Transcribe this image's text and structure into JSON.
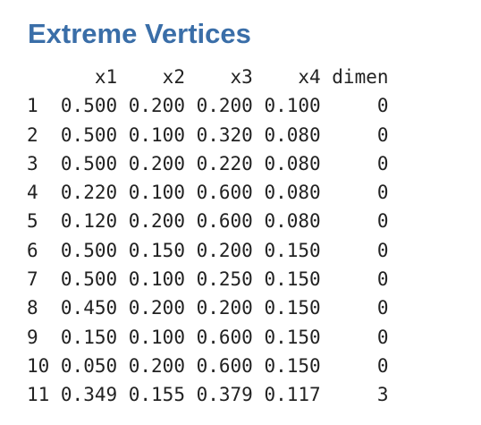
{
  "title": "Extreme Vertices",
  "table": {
    "headers": {
      "x1": "x1",
      "x2": "x2",
      "x3": "x3",
      "x4": "x4",
      "dimen": "dimen"
    },
    "rows": [
      {
        "idx": "1",
        "x1": "0.500",
        "x2": "0.200",
        "x3": "0.200",
        "x4": "0.100",
        "dimen": "0"
      },
      {
        "idx": "2",
        "x1": "0.500",
        "x2": "0.100",
        "x3": "0.320",
        "x4": "0.080",
        "dimen": "0"
      },
      {
        "idx": "3",
        "x1": "0.500",
        "x2": "0.200",
        "x3": "0.220",
        "x4": "0.080",
        "dimen": "0"
      },
      {
        "idx": "4",
        "x1": "0.220",
        "x2": "0.100",
        "x3": "0.600",
        "x4": "0.080",
        "dimen": "0"
      },
      {
        "idx": "5",
        "x1": "0.120",
        "x2": "0.200",
        "x3": "0.600",
        "x4": "0.080",
        "dimen": "0"
      },
      {
        "idx": "6",
        "x1": "0.500",
        "x2": "0.150",
        "x3": "0.200",
        "x4": "0.150",
        "dimen": "0"
      },
      {
        "idx": "7",
        "x1": "0.500",
        "x2": "0.100",
        "x3": "0.250",
        "x4": "0.150",
        "dimen": "0"
      },
      {
        "idx": "8",
        "x1": "0.450",
        "x2": "0.200",
        "x3": "0.200",
        "x4": "0.150",
        "dimen": "0"
      },
      {
        "idx": "9",
        "x1": "0.150",
        "x2": "0.100",
        "x3": "0.600",
        "x4": "0.150",
        "dimen": "0"
      },
      {
        "idx": "10",
        "x1": "0.050",
        "x2": "0.200",
        "x3": "0.600",
        "x4": "0.150",
        "dimen": "0"
      },
      {
        "idx": "11",
        "x1": "0.349",
        "x2": "0.155",
        "x3": "0.379",
        "x4": "0.117",
        "dimen": "3"
      }
    ]
  },
  "colors": {
    "title": "#3a6ea8",
    "text": "#222222",
    "background": "#ffffff"
  }
}
